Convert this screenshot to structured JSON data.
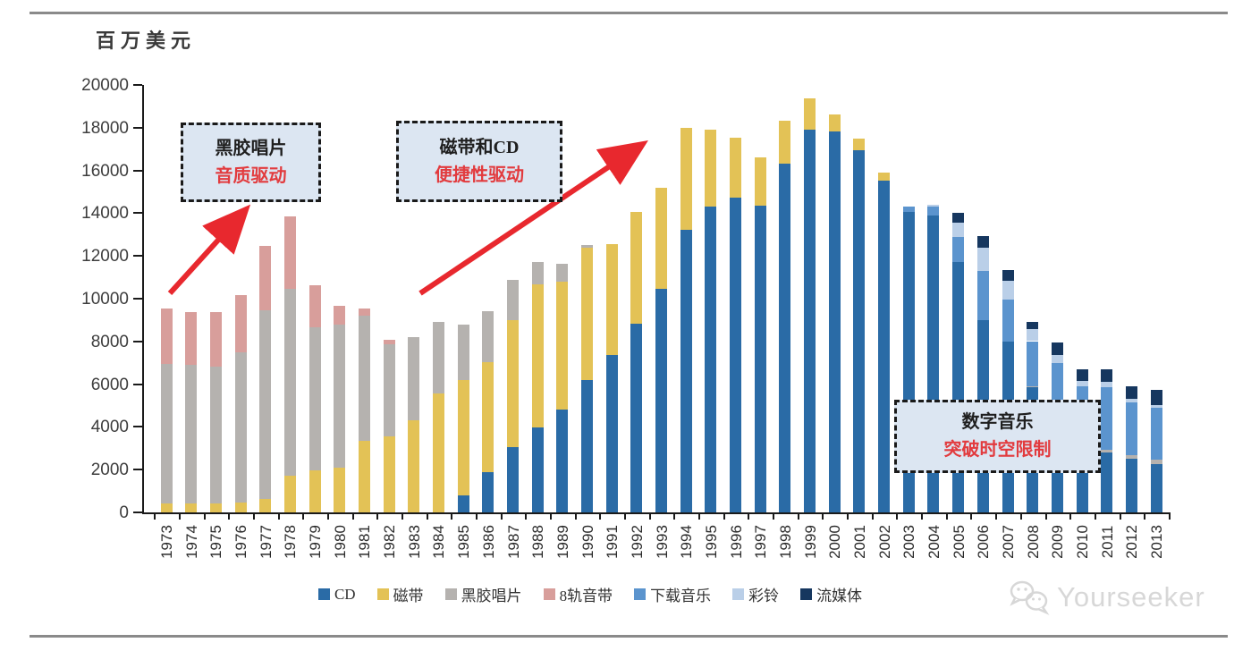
{
  "unit_label": "百万美元",
  "annotations": [
    {
      "line1": "黑胶唱片",
      "line2": "音质驱动"
    },
    {
      "line1": "磁带和CD",
      "line2": "便捷性驱动"
    },
    {
      "line1": "数字音乐",
      "line2": "突破时空限制"
    }
  ],
  "watermark": {
    "text": "Yourseeker",
    "icon": "wechat-icon"
  },
  "colors": {
    "arrow_red": "#e8282e",
    "annotation_red": "#e23b3e",
    "annotation_bg": "#dce6f2",
    "axis": "#1a1a1a",
    "rule_gray": "#8a8a8a",
    "watermark_gray": "#d7d7d7"
  },
  "chart_data": {
    "type": "bar",
    "stacked": true,
    "title": "",
    "ylabel": "百万美元",
    "xlabel": "",
    "ylim": [
      0,
      20000
    ],
    "ytick_step": 2000,
    "grid": false,
    "legend_position": "bottom",
    "categories": [
      1973,
      1974,
      1975,
      1976,
      1977,
      1978,
      1979,
      1980,
      1981,
      1982,
      1983,
      1984,
      1985,
      1986,
      1987,
      1988,
      1989,
      1990,
      1991,
      1992,
      1993,
      1994,
      1995,
      1996,
      1997,
      1998,
      1999,
      2000,
      2001,
      2002,
      2003,
      2004,
      2005,
      2006,
      2007,
      2008,
      2009,
      2010,
      2011,
      2012,
      2013
    ],
    "series": [
      {
        "name": "CD",
        "color": "#2a6ba6",
        "values": [
          0,
          0,
          0,
          0,
          0,
          0,
          0,
          0,
          0,
          0,
          0,
          0,
          800,
          1880,
          3050,
          3980,
          4810,
          6190,
          7360,
          8830,
          10460,
          13220,
          14310,
          14730,
          14350,
          16320,
          17910,
          17820,
          16950,
          15520,
          14050,
          13900,
          11700,
          9000,
          8000,
          5850,
          4150,
          3500,
          2800,
          2500,
          2250
        ]
      },
      {
        "name": "磁带",
        "color": "#e3c256",
        "values": [
          420,
          420,
          420,
          460,
          630,
          1700,
          1970,
          2090,
          3350,
          3550,
          4300,
          5550,
          5400,
          5150,
          5940,
          6690,
          5980,
          6210,
          5190,
          5230,
          4730,
          4780,
          3600,
          2800,
          2250,
          2000,
          1450,
          800,
          550,
          400,
          0,
          0,
          0,
          0,
          0,
          0,
          0,
          0,
          0,
          0,
          0
        ]
      },
      {
        "name": "黑胶唱片",
        "color": "#b5b2af",
        "values": [
          6530,
          6480,
          6400,
          7030,
          8830,
          8760,
          6690,
          6690,
          5860,
          4320,
          3900,
          3350,
          2590,
          2390,
          1880,
          1050,
          840,
          100,
          0,
          0,
          0,
          0,
          0,
          0,
          0,
          0,
          0,
          0,
          0,
          0,
          0,
          0,
          0,
          0,
          0,
          60,
          70,
          90,
          120,
          160,
          210
        ]
      },
      {
        "name": "8轨音带",
        "color": "#d89e9b",
        "values": [
          2590,
          2470,
          2550,
          2680,
          3010,
          3390,
          1970,
          880,
          330,
          210,
          0,
          0,
          0,
          0,
          0,
          0,
          0,
          0,
          0,
          0,
          0,
          0,
          0,
          0,
          0,
          0,
          0,
          0,
          0,
          0,
          0,
          0,
          0,
          0,
          0,
          0,
          0,
          0,
          0,
          0,
          0
        ]
      },
      {
        "name": "下载音乐",
        "color": "#5b94ce",
        "values": [
          0,
          0,
          0,
          0,
          0,
          0,
          0,
          0,
          0,
          0,
          0,
          0,
          0,
          0,
          0,
          0,
          0,
          0,
          0,
          0,
          0,
          0,
          0,
          0,
          0,
          0,
          0,
          0,
          0,
          0,
          250,
          400,
          1200,
          2300,
          1950,
          2100,
          2750,
          2300,
          2950,
          2500,
          2450
        ]
      },
      {
        "name": "彩铃",
        "color": "#bacfe8",
        "values": [
          0,
          0,
          0,
          0,
          0,
          0,
          0,
          0,
          0,
          0,
          0,
          0,
          0,
          0,
          0,
          0,
          0,
          0,
          0,
          0,
          0,
          0,
          0,
          0,
          0,
          0,
          0,
          0,
          0,
          0,
          0,
          100,
          650,
          1100,
          900,
          550,
          380,
          250,
          220,
          150,
          120
        ]
      },
      {
        "name": "流媒体",
        "color": "#16375f",
        "values": [
          0,
          0,
          0,
          0,
          0,
          0,
          0,
          0,
          0,
          0,
          0,
          0,
          0,
          0,
          0,
          0,
          0,
          0,
          0,
          0,
          0,
          0,
          0,
          0,
          0,
          0,
          0,
          0,
          0,
          0,
          0,
          0,
          450,
          550,
          500,
          350,
          600,
          550,
          610,
          600,
          700
        ]
      }
    ]
  }
}
